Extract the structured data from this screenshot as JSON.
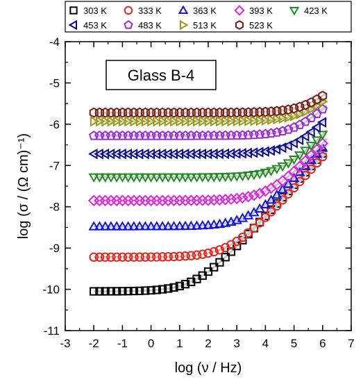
{
  "chart_data": {
    "type": "scatter",
    "annotation": "Glass B-4",
    "xlabel": "log (ν / Hz)",
    "ylabel": "log (σ / (Ω cm)⁻¹)",
    "xlim": [
      -3,
      7
    ],
    "ylim": [
      -11,
      -4
    ],
    "xticks": [
      -3,
      -2,
      -1,
      0,
      1,
      2,
      3,
      4,
      5,
      6,
      7
    ],
    "yticks": [
      -11,
      -10,
      -9,
      -8,
      -7,
      -6,
      -5,
      -4
    ],
    "legend_position": "top",
    "series": [
      {
        "name": "303 K",
        "marker": "square",
        "color": "#000000",
        "sigma_dc": -10.05,
        "knee": 1.6,
        "slope": 0.76
      },
      {
        "name": "333 K",
        "marker": "circle",
        "color": "#e8261d",
        "sigma_dc": -9.22,
        "knee": 2.8,
        "slope": 0.76
      },
      {
        "name": "363 K",
        "marker": "triangle-up",
        "color": "#1212e8",
        "sigma_dc": -8.48,
        "knee": 3.5,
        "slope": 0.76
      },
      {
        "name": "393 K",
        "marker": "diamond",
        "color": "#e023e0",
        "sigma_dc": -7.85,
        "knee": 4.2,
        "slope": 0.76
      },
      {
        "name": "423 K",
        "marker": "triangle-down",
        "color": "#228b22",
        "sigma_dc": -7.28,
        "knee": 4.7,
        "slope": 0.76
      },
      {
        "name": "453 K",
        "marker": "triangle-left",
        "color": "#0a0a8c",
        "sigma_dc": -6.72,
        "knee": 5.1,
        "slope": 0.76
      },
      {
        "name": "483 K",
        "marker": "pentagon",
        "color": "#9b2ad8",
        "sigma_dc": -6.28,
        "knee": 5.3,
        "slope": 0.76
      },
      {
        "name": "513 K",
        "marker": "triangle-right",
        "color": "#9a9a14",
        "sigma_dc": -5.93,
        "knee": 5.6,
        "slope": 0.76
      },
      {
        "name": "523 K",
        "marker": "hexagon",
        "color": "#7a1e14",
        "sigma_dc": -5.72,
        "knee": 5.75,
        "slope": 0.76
      }
    ],
    "x_points": {
      "start": -2,
      "end": 6,
      "step": 0.2
    }
  }
}
